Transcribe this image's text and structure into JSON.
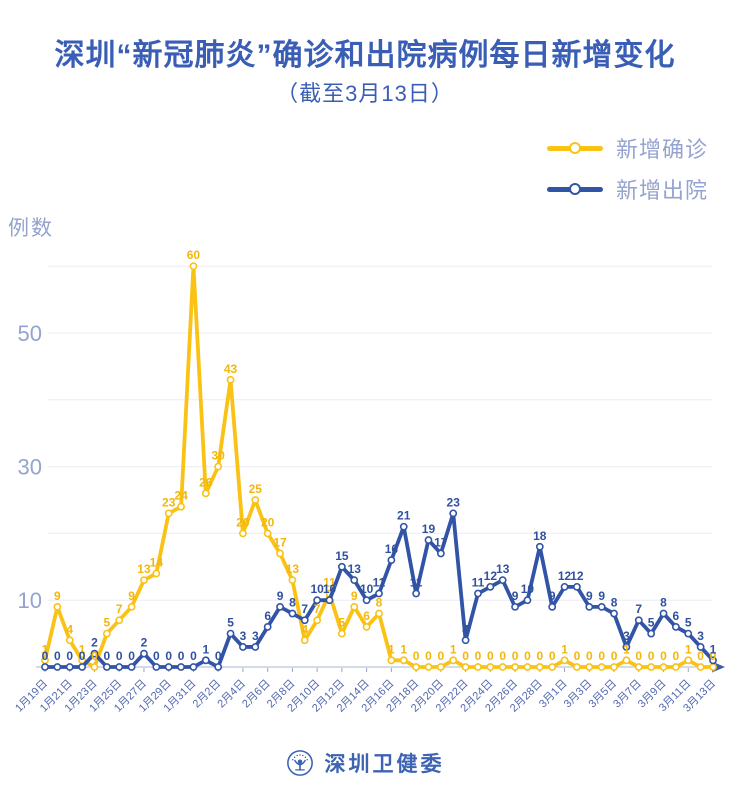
{
  "header": {
    "title": "深圳“新冠肺炎”确诊和出院病例每日新增变化",
    "subtitle": "（截至3月13日）"
  },
  "footer": {
    "org_name": "深圳卫健委",
    "logo_icon": "shenzhen-health-commission-seal"
  },
  "colors": {
    "title_blue": "#3a5eb5",
    "axis_text_light": "#94a3cf",
    "xaxis_text": "#5268af",
    "gridline": "#ececf2",
    "axis_line": "#c7cee2",
    "axis_arrow": "#3a5cad",
    "confirmed_yellow": "#fac215",
    "discharged_blue": "#3154a6"
  },
  "chart_data": {
    "type": "line",
    "title": "深圳“新冠肺炎”确诊和出院病例每日新增变化",
    "subtitle": "（截至3月13日）",
    "ylabel": "例数",
    "xlabel": "",
    "ylim": [
      0,
      63
    ],
    "yticks_labeled": [
      10,
      30,
      50
    ],
    "gridlines": [
      10,
      20,
      30,
      40,
      50,
      60
    ],
    "grid": true,
    "legend_position": "top-right",
    "x_label_interval": 2,
    "categories": [
      "1月19日",
      "1月20日",
      "1月21日",
      "1月22日",
      "1月23日",
      "1月24日",
      "1月25日",
      "1月26日",
      "1月27日",
      "1月28日",
      "1月29日",
      "1月30日",
      "1月31日",
      "2月1日",
      "2月2日",
      "2月3日",
      "2月4日",
      "2月5日",
      "2月6日",
      "2月7日",
      "2月8日",
      "2月9日",
      "2月10日",
      "2月11日",
      "2月12日",
      "2月13日",
      "2月14日",
      "2月15日",
      "2月16日",
      "2月17日",
      "2月18日",
      "2月19日",
      "2月20日",
      "2月21日",
      "2月22日",
      "2月23日",
      "2月24日",
      "2月25日",
      "2月26日",
      "2月27日",
      "2月28日",
      "2月29日",
      "3月1日",
      "3月2日",
      "3月3日",
      "3月4日",
      "3月5日",
      "3月6日",
      "3月7日",
      "3月8日",
      "3月9日",
      "3月10日",
      "3月11日",
      "3月12日",
      "3月13日"
    ],
    "series": [
      {
        "id": "confirmed",
        "name": "新增确诊",
        "color": "#fac215",
        "label_color": "#f2b70f",
        "values": [
          1,
          9,
          4,
          1,
          0,
          5,
          7,
          9,
          13,
          14,
          23,
          24,
          60,
          26,
          30,
          43,
          20,
          25,
          20,
          17,
          13,
          4,
          7,
          11,
          5,
          9,
          6,
          8,
          1,
          1,
          0,
          0,
          0,
          1,
          0,
          0,
          0,
          0,
          0,
          0,
          0,
          0,
          1,
          0,
          0,
          0,
          0,
          1,
          0,
          0,
          0,
          0,
          1,
          0,
          0
        ]
      },
      {
        "id": "discharged",
        "name": "新增出院",
        "color": "#3154a6",
        "label_color": "#31519f",
        "values": [
          0,
          0,
          0,
          0,
          2,
          0,
          0,
          0,
          2,
          0,
          0,
          0,
          0,
          1,
          0,
          5,
          3,
          3,
          6,
          9,
          8,
          7,
          10,
          10,
          15,
          13,
          10,
          11,
          16,
          21,
          11,
          19,
          17,
          23,
          4,
          11,
          12,
          13,
          9,
          10,
          18,
          9,
          12,
          12,
          9,
          9,
          8,
          3,
          7,
          5,
          8,
          6,
          5,
          3,
          1
        ]
      }
    ]
  }
}
